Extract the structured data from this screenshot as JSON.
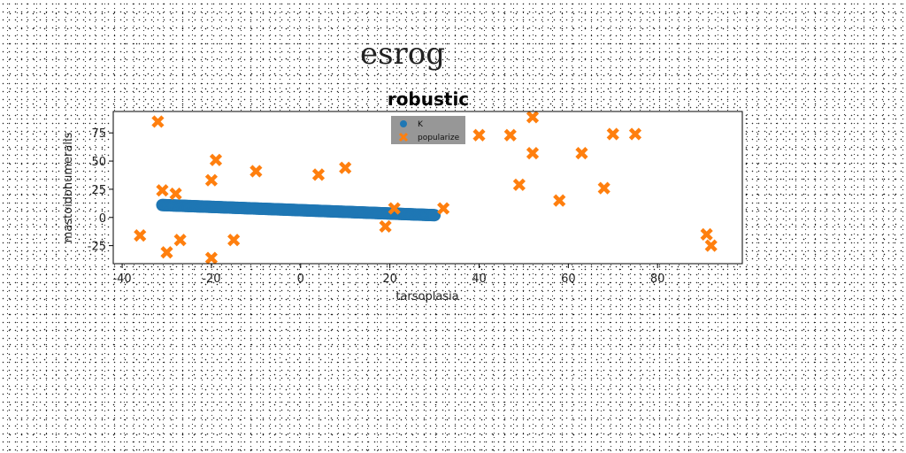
{
  "suptitle": "esrog",
  "chart_data": {
    "type": "scatter",
    "title": "robustic",
    "xlabel": "tarsoplasia",
    "ylabel": "mastoidohumeralis",
    "xlim": [
      -42,
      99
    ],
    "ylim": [
      -41,
      94
    ],
    "xticks": [
      -40,
      -20,
      0,
      20,
      40,
      60,
      80
    ],
    "yticks": [
      -25,
      0,
      25,
      50,
      75
    ],
    "grid": false,
    "legend_position": "top-center",
    "series": [
      {
        "name": "K",
        "marker": "circle",
        "color": "#1f77b4",
        "x_range": [
          -31,
          30
        ],
        "y_range": [
          11,
          2
        ],
        "count": 300
      },
      {
        "name": "popularize",
        "marker": "x",
        "color": "#ff7f0e",
        "points": [
          [
            -32,
            85
          ],
          [
            -31,
            24
          ],
          [
            -28,
            21
          ],
          [
            -36,
            -16
          ],
          [
            -30,
            -31
          ],
          [
            -27,
            -20
          ],
          [
            -20,
            -36
          ],
          [
            -20,
            33
          ],
          [
            -19,
            51
          ],
          [
            -15,
            -20
          ],
          [
            -10,
            41
          ],
          [
            4,
            38
          ],
          [
            10,
            44
          ],
          [
            19,
            -8
          ],
          [
            21,
            8
          ],
          [
            32,
            8
          ],
          [
            40,
            73
          ],
          [
            47,
            73
          ],
          [
            49,
            29
          ],
          [
            52,
            89
          ],
          [
            52,
            57
          ],
          [
            58,
            15
          ],
          [
            63,
            57
          ],
          [
            68,
            26
          ],
          [
            70,
            74
          ],
          [
            75,
            74
          ],
          [
            91,
            -15
          ],
          [
            92,
            -25
          ]
        ]
      }
    ]
  }
}
